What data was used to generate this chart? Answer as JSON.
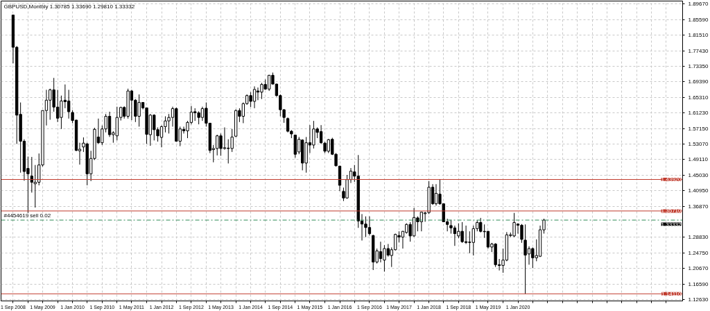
{
  "chart_data": {
    "type": "candlestick",
    "title": "GBPUSD,Monthly  1.30785 1.33690 1.29810 1.33332",
    "color": "#000000",
    "x": [
      "2008-09",
      "2008-10",
      "2008-11",
      "2008-12",
      "2009-01",
      "2009-02",
      "2009-03",
      "2009-04",
      "2009-05",
      "2009-06",
      "2009-07",
      "2009-08",
      "2009-09",
      "2009-10",
      "2009-11",
      "2009-12",
      "2010-01",
      "2010-02",
      "2010-03",
      "2010-04",
      "2010-05",
      "2010-06",
      "2010-07",
      "2010-08",
      "2010-09",
      "2010-10",
      "2010-11",
      "2010-12",
      "2011-01",
      "2011-02",
      "2011-03",
      "2011-04",
      "2011-05",
      "2011-06",
      "2011-07",
      "2011-08",
      "2011-09",
      "2011-10",
      "2011-11",
      "2011-12",
      "2012-01",
      "2012-02",
      "2012-03",
      "2012-04",
      "2012-05",
      "2012-06",
      "2012-07",
      "2012-08",
      "2012-09",
      "2012-10",
      "2012-11",
      "2012-12",
      "2013-01",
      "2013-02",
      "2013-03",
      "2013-04",
      "2013-05",
      "2013-06",
      "2013-07",
      "2013-08",
      "2013-09",
      "2013-10",
      "2013-11",
      "2013-12",
      "2014-01",
      "2014-02",
      "2014-03",
      "2014-04",
      "2014-05",
      "2014-06",
      "2014-07",
      "2014-08",
      "2014-09",
      "2014-10",
      "2014-11",
      "2014-12",
      "2015-01",
      "2015-02",
      "2015-03",
      "2015-04",
      "2015-05",
      "2015-06",
      "2015-07",
      "2015-08",
      "2015-09",
      "2015-10",
      "2015-11",
      "2015-12",
      "2016-01",
      "2016-02",
      "2016-03",
      "2016-04",
      "2016-05",
      "2016-06",
      "2016-07",
      "2016-08",
      "2016-09",
      "2016-10",
      "2016-11",
      "2016-12",
      "2017-01",
      "2017-02",
      "2017-03",
      "2017-04",
      "2017-05",
      "2017-06",
      "2017-07",
      "2017-08",
      "2017-09",
      "2017-10",
      "2017-11",
      "2017-12",
      "2018-01",
      "2018-02",
      "2018-03",
      "2018-04",
      "2018-05",
      "2018-06",
      "2018-07",
      "2018-08",
      "2018-09",
      "2018-10",
      "2018-11",
      "2018-12",
      "2019-01",
      "2019-02",
      "2019-03",
      "2019-04",
      "2019-05",
      "2019-06",
      "2019-07",
      "2019-08",
      "2019-09",
      "2019-10",
      "2019-11",
      "2019-12",
      "2020-01",
      "2020-02",
      "2020-03",
      "2020-04",
      "2020-05",
      "2020-06",
      "2020-07",
      "2020-08"
    ],
    "ohlc": [
      [
        1.868,
        1.868,
        1.742,
        1.784
      ],
      [
        1.784,
        1.787,
        1.532,
        1.607
      ],
      [
        1.609,
        1.64,
        1.457,
        1.539
      ],
      [
        1.539,
        1.544,
        1.436,
        1.46
      ],
      [
        1.468,
        1.499,
        1.352,
        1.454
      ],
      [
        1.448,
        1.498,
        1.405,
        1.432
      ],
      [
        1.428,
        1.477,
        1.366,
        1.432
      ],
      [
        1.432,
        1.507,
        1.424,
        1.477
      ],
      [
        1.477,
        1.619,
        1.473,
        1.619
      ],
      [
        1.619,
        1.673,
        1.58,
        1.646
      ],
      [
        1.646,
        1.676,
        1.595,
        1.673
      ],
      [
        1.673,
        1.704,
        1.616,
        1.628
      ],
      [
        1.628,
        1.673,
        1.589,
        1.599
      ],
      [
        1.601,
        1.658,
        1.571,
        1.644
      ],
      [
        1.646,
        1.687,
        1.625,
        1.642
      ],
      [
        1.644,
        1.673,
        1.598,
        1.616
      ],
      [
        1.614,
        1.62,
        1.586,
        1.593
      ],
      [
        1.594,
        1.595,
        1.513,
        1.515
      ],
      [
        1.514,
        1.535,
        1.478,
        1.518
      ],
      [
        1.524,
        1.549,
        1.511,
        1.534
      ],
      [
        1.532,
        1.535,
        1.424,
        1.454
      ],
      [
        1.454,
        1.514,
        1.435,
        1.494
      ],
      [
        1.494,
        1.574,
        1.49,
        1.57
      ],
      [
        1.55,
        1.598,
        1.532,
        1.535
      ],
      [
        1.535,
        1.58,
        1.529,
        1.571
      ],
      [
        1.571,
        1.61,
        1.562,
        1.604
      ],
      [
        1.604,
        1.616,
        1.55,
        1.556
      ],
      [
        1.556,
        1.565,
        1.535,
        1.561
      ],
      [
        1.553,
        1.629,
        1.541,
        1.601
      ],
      [
        1.601,
        1.629,
        1.593,
        1.627
      ],
      [
        1.627,
        1.63,
        1.598,
        1.604
      ],
      [
        1.604,
        1.676,
        1.598,
        1.67
      ],
      [
        1.67,
        1.673,
        1.594,
        1.646
      ],
      [
        1.646,
        1.649,
        1.589,
        1.604
      ],
      [
        1.604,
        1.661,
        1.577,
        1.64
      ],
      [
        1.64,
        1.64,
        1.622,
        1.626
      ],
      [
        1.626,
        1.626,
        1.532,
        1.557
      ],
      [
        1.556,
        1.61,
        1.527,
        1.607
      ],
      [
        1.607,
        1.609,
        1.541,
        1.569
      ],
      [
        1.569,
        1.575,
        1.538,
        1.553
      ],
      [
        1.549,
        1.58,
        1.523,
        1.577
      ],
      [
        1.577,
        1.604,
        1.562,
        1.592
      ],
      [
        1.592,
        1.61,
        1.559,
        1.601
      ],
      [
        1.601,
        1.629,
        1.577,
        1.624
      ],
      [
        1.624,
        1.627,
        1.538,
        1.539
      ],
      [
        1.539,
        1.577,
        1.526,
        1.571
      ],
      [
        1.57,
        1.577,
        1.559,
        1.566
      ],
      [
        1.566,
        1.592,
        1.547,
        1.588
      ],
      [
        1.588,
        1.631,
        1.583,
        1.615
      ],
      [
        1.616,
        1.625,
        1.592,
        1.613
      ],
      [
        1.613,
        1.617,
        1.583,
        1.601
      ],
      [
        1.601,
        1.629,
        1.592,
        1.624
      ],
      [
        1.625,
        1.64,
        1.577,
        1.586
      ],
      [
        1.586,
        1.587,
        1.508,
        1.515
      ],
      [
        1.517,
        1.529,
        1.484,
        1.52
      ],
      [
        1.52,
        1.556,
        1.502,
        1.553
      ],
      [
        1.553,
        1.559,
        1.501,
        1.52
      ],
      [
        1.52,
        1.575,
        1.517,
        1.522
      ],
      [
        1.521,
        1.544,
        1.481,
        1.52
      ],
      [
        1.52,
        1.571,
        1.511,
        1.55
      ],
      [
        1.552,
        1.622,
        1.55,
        1.619
      ],
      [
        1.619,
        1.625,
        1.589,
        1.604
      ],
      [
        1.604,
        1.64,
        1.586,
        1.637
      ],
      [
        1.637,
        1.661,
        1.634,
        1.658
      ],
      [
        1.658,
        1.667,
        1.628,
        1.643
      ],
      [
        1.643,
        1.682,
        1.625,
        1.674
      ],
      [
        1.67,
        1.679,
        1.646,
        1.667
      ],
      [
        1.667,
        1.691,
        1.649,
        1.687
      ],
      [
        1.687,
        1.7,
        1.673,
        1.675
      ],
      [
        1.675,
        1.712,
        1.67,
        1.711
      ],
      [
        1.711,
        1.718,
        1.687,
        1.688
      ],
      [
        1.688,
        1.689,
        1.655,
        1.658
      ],
      [
        1.658,
        1.661,
        1.604,
        1.621
      ],
      [
        1.621,
        1.623,
        1.587,
        1.601
      ],
      [
        1.598,
        1.601,
        1.562,
        1.565
      ],
      [
        1.565,
        1.568,
        1.547,
        1.558
      ],
      [
        1.555,
        1.556,
        1.496,
        1.505
      ],
      [
        1.511,
        1.55,
        1.505,
        1.544
      ],
      [
        1.542,
        1.544,
        1.463,
        1.482
      ],
      [
        1.482,
        1.55,
        1.457,
        1.535
      ],
      [
        1.535,
        1.581,
        1.508,
        1.529
      ],
      [
        1.529,
        1.592,
        1.52,
        1.571
      ],
      [
        1.571,
        1.575,
        1.547,
        1.562
      ],
      [
        1.564,
        1.581,
        1.532,
        1.535
      ],
      [
        1.534,
        1.537,
        1.508,
        1.513
      ],
      [
        1.513,
        1.545,
        1.508,
        1.543
      ],
      [
        1.544,
        1.548,
        1.503,
        1.505
      ],
      [
        1.505,
        1.508,
        1.473,
        1.475
      ],
      [
        1.474,
        1.475,
        1.409,
        1.424
      ],
      [
        1.408,
        1.418,
        1.383,
        1.391
      ],
      [
        1.391,
        1.451,
        1.389,
        1.439
      ],
      [
        1.439,
        1.469,
        1.43,
        1.461
      ],
      [
        1.459,
        1.477,
        1.433,
        1.448
      ],
      [
        1.448,
        1.503,
        1.313,
        1.331
      ],
      [
        1.331,
        1.349,
        1.28,
        1.323
      ],
      [
        1.323,
        1.343,
        1.289,
        1.314
      ],
      [
        1.314,
        1.343,
        1.293,
        1.298
      ],
      [
        1.293,
        1.295,
        1.203,
        1.224
      ],
      [
        1.224,
        1.259,
        1.22,
        1.253
      ],
      [
        1.251,
        1.277,
        1.223,
        1.233
      ],
      [
        1.229,
        1.268,
        1.199,
        1.259
      ],
      [
        1.259,
        1.271,
        1.238,
        1.242
      ],
      [
        1.241,
        1.262,
        1.211,
        1.256
      ],
      [
        1.256,
        1.298,
        1.254,
        1.296
      ],
      [
        1.293,
        1.304,
        1.275,
        1.289
      ],
      [
        1.289,
        1.305,
        1.259,
        1.304
      ],
      [
        1.301,
        1.325,
        1.298,
        1.322
      ],
      [
        1.322,
        1.328,
        1.277,
        1.292
      ],
      [
        1.292,
        1.365,
        1.29,
        1.34
      ],
      [
        1.339,
        1.343,
        1.304,
        1.329
      ],
      [
        1.329,
        1.355,
        1.304,
        1.354
      ],
      [
        1.35,
        1.355,
        1.329,
        1.352
      ],
      [
        1.353,
        1.435,
        1.349,
        1.419
      ],
      [
        1.419,
        1.427,
        1.373,
        1.376
      ],
      [
        1.376,
        1.427,
        1.371,
        1.403
      ],
      [
        1.401,
        1.44,
        1.373,
        1.376
      ],
      [
        1.376,
        1.377,
        1.328,
        1.329
      ],
      [
        1.329,
        1.337,
        1.304,
        1.322
      ],
      [
        1.319,
        1.334,
        1.298,
        1.313
      ],
      [
        1.313,
        1.319,
        1.266,
        1.298
      ],
      [
        1.292,
        1.325,
        1.286,
        1.304
      ],
      [
        1.304,
        1.328,
        1.274,
        1.277
      ],
      [
        1.277,
        1.319,
        1.271,
        1.275
      ],
      [
        1.276,
        1.304,
        1.247,
        1.275
      ],
      [
        1.275,
        1.319,
        1.241,
        1.311
      ],
      [
        1.311,
        1.333,
        1.304,
        1.327
      ],
      [
        1.327,
        1.339,
        1.301,
        1.304
      ],
      [
        1.304,
        1.322,
        1.287,
        1.303
      ],
      [
        1.304,
        1.305,
        1.259,
        1.263
      ],
      [
        1.263,
        1.274,
        1.25,
        1.271
      ],
      [
        1.271,
        1.273,
        1.211,
        1.217
      ],
      [
        1.217,
        1.232,
        1.202,
        1.215
      ],
      [
        1.215,
        1.259,
        1.196,
        1.229
      ],
      [
        1.229,
        1.302,
        1.226,
        1.295
      ],
      [
        1.293,
        1.301,
        1.289,
        1.295
      ],
      [
        1.292,
        1.352,
        1.289,
        1.327
      ],
      [
        1.323,
        1.325,
        1.298,
        1.32
      ],
      [
        1.32,
        1.323,
        1.274,
        1.283
      ],
      [
        1.281,
        1.322,
        1.141,
        1.242
      ],
      [
        1.245,
        1.265,
        1.217,
        1.259
      ],
      [
        1.259,
        1.262,
        1.208,
        1.235
      ],
      [
        1.235,
        1.283,
        1.226,
        1.241
      ],
      [
        1.239,
        1.319,
        1.237,
        1.308
      ],
      [
        1.30785,
        1.3369,
        1.2981,
        1.33332
      ]
    ],
    "xlim": [
      "2008-05-25",
      "2023-09-12"
    ],
    "xticks": [
      {
        "value": "2008-09",
        "label": "1 Sep 2008"
      },
      {
        "value": "2009-01",
        "label": null
      },
      {
        "value": "2009-05",
        "label": "1 May 2009"
      },
      {
        "value": "2009-09",
        "label": null
      },
      {
        "value": "2010-01",
        "label": "1 Jan 2010"
      },
      {
        "value": "2010-05",
        "label": null
      },
      {
        "value": "2010-09",
        "label": "1 Sep 2010"
      },
      {
        "value": "2011-01",
        "label": null
      },
      {
        "value": "2011-05",
        "label": "1 May 2011"
      },
      {
        "value": "2011-09",
        "label": null
      },
      {
        "value": "2012-01",
        "label": "1 Jan 2012"
      },
      {
        "value": "2012-05",
        "label": null
      },
      {
        "value": "2012-09",
        "label": "1 Sep 2012"
      },
      {
        "value": "2013-01",
        "label": null
      },
      {
        "value": "2013-05",
        "label": "1 May 2013"
      },
      {
        "value": "2013-09",
        "label": null
      },
      {
        "value": "2014-01",
        "label": "1 Jan 2014"
      },
      {
        "value": "2014-05",
        "label": null
      },
      {
        "value": "2014-09",
        "label": "1 Sep 2014"
      },
      {
        "value": "2015-01",
        "label": null
      },
      {
        "value": "2015-05",
        "label": "1 May 2015"
      },
      {
        "value": "2015-09",
        "label": null
      },
      {
        "value": "2016-01",
        "label": "1 Jan 2016"
      },
      {
        "value": "2016-05",
        "label": null
      },
      {
        "value": "2016-09",
        "label": "1 Sep 2016"
      },
      {
        "value": "2017-01",
        "label": null
      },
      {
        "value": "2017-05",
        "label": "1 May 2017"
      },
      {
        "value": "2017-09",
        "label": null
      },
      {
        "value": "2018-01",
        "label": "1 Jan 2018"
      },
      {
        "value": "2018-05",
        "label": null
      },
      {
        "value": "2018-09",
        "label": "1 Sep 2018"
      },
      {
        "value": "2019-01",
        "label": null
      },
      {
        "value": "2019-05",
        "label": "1 May 2019"
      },
      {
        "value": "2019-09",
        "label": null
      },
      {
        "value": "2020-01",
        "label": "1 Jan 2020"
      },
      {
        "value": "2020-05",
        "label": null
      },
      {
        "value": "2020-09",
        "label": null
      },
      {
        "value": "2021-01",
        "label": null
      },
      {
        "value": "2021-05",
        "label": null
      },
      {
        "value": "2021-09",
        "label": null
      },
      {
        "value": "2022-01",
        "label": null
      },
      {
        "value": "2022-05",
        "label": null
      },
      {
        "value": "2022-09",
        "label": null
      },
      {
        "value": "2023-01",
        "label": null
      },
      {
        "value": "2023-05",
        "label": null
      }
    ],
    "ylim": [
      1.1225,
      1.9045
    ],
    "yticks": [
      {
        "value": 1.8967,
        "label": "1.89670"
      },
      {
        "value": 1.8559,
        "label": "1.85590"
      },
      {
        "value": 1.8151,
        "label": "1.81510"
      },
      {
        "value": 1.7743,
        "label": "1.77430"
      },
      {
        "value": 1.7335,
        "label": "1.73350"
      },
      {
        "value": 1.6939,
        "label": "1.69390"
      },
      {
        "value": 1.6531,
        "label": "1.65310"
      },
      {
        "value": 1.6123,
        "label": "1.61230"
      },
      {
        "value": 1.5715,
        "label": "1.57150"
      },
      {
        "value": 1.5307,
        "label": "1.53070"
      },
      {
        "value": 1.4911,
        "label": "1.49110"
      },
      {
        "value": 1.4503,
        "label": "1.45030"
      },
      {
        "value": 1.4095,
        "label": "1.40950"
      },
      {
        "value": 1.3687,
        "label": "1.36870"
      },
      {
        "value": 1.2883,
        "label": "1.28830"
      },
      {
        "value": 1.2475,
        "label": "1.24750"
      },
      {
        "value": 1.2067,
        "label": "1.20670"
      },
      {
        "value": 1.1659,
        "label": "1.16590"
      },
      {
        "value": 1.1263,
        "label": "1.12630"
      }
    ],
    "grid": true,
    "ref_lines": [
      {
        "axis": "y",
        "value": 1.4392,
        "label": "1.43920",
        "color": "#c0392b",
        "line_style": "solid"
      },
      {
        "axis": "y",
        "value": 1.3571,
        "label": "1.35710",
        "color": "#c0392b",
        "line_style": "solid"
      },
      {
        "axis": "y",
        "value": 1.1411,
        "label": "1.14110",
        "color": "#c0392b",
        "line_style": "solid"
      },
      {
        "axis": "y",
        "value": 1.3333,
        "label": "#4454619 sell 0.02",
        "color": "#2e8b57",
        "line_style": "dashed"
      }
    ],
    "annotations": [
      {
        "text": "1.33332",
        "y": 1.33332
      }
    ]
  }
}
